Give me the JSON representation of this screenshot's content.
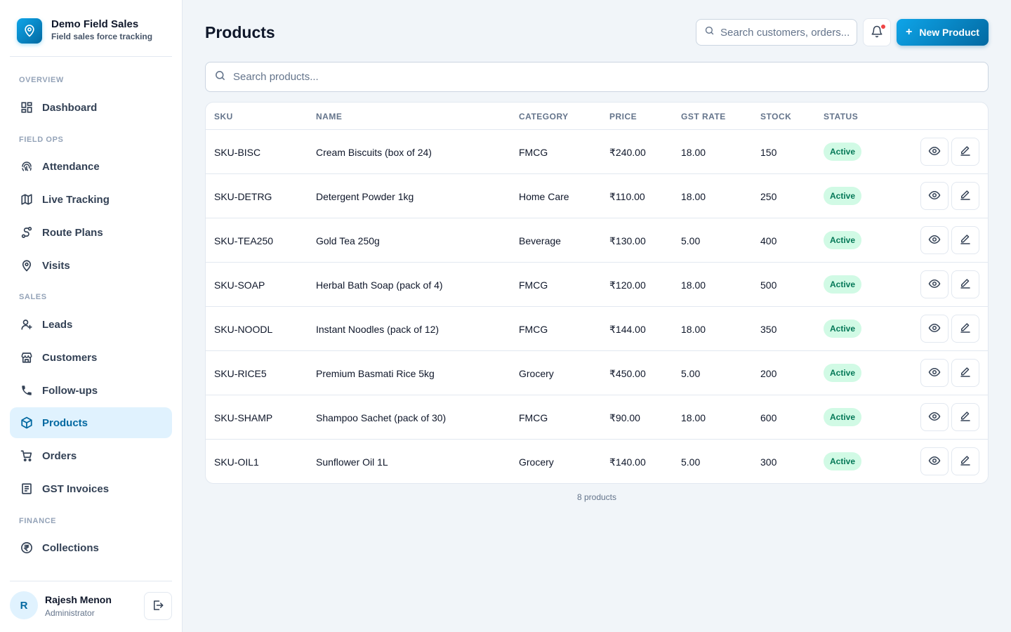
{
  "brand": {
    "title": "Demo Field Sales",
    "subtitle": "Field sales force tracking"
  },
  "nav": {
    "sections": [
      {
        "label": "OVERVIEW"
      },
      {
        "label": "FIELD OPS"
      },
      {
        "label": "SALES"
      },
      {
        "label": "FINANCE"
      }
    ],
    "items": [
      {
        "label": "Dashboard",
        "icon": "dashboard-icon"
      },
      {
        "label": "Attendance",
        "icon": "fingerprint-icon"
      },
      {
        "label": "Live Tracking",
        "icon": "map-icon"
      },
      {
        "label": "Route Plans",
        "icon": "route-icon"
      },
      {
        "label": "Visits",
        "icon": "map-pin-icon"
      },
      {
        "label": "Leads",
        "icon": "user-plus-icon"
      },
      {
        "label": "Customers",
        "icon": "store-icon"
      },
      {
        "label": "Follow-ups",
        "icon": "phone-icon"
      },
      {
        "label": "Products",
        "icon": "package-icon",
        "active": true
      },
      {
        "label": "Orders",
        "icon": "cart-icon"
      },
      {
        "label": "GST Invoices",
        "icon": "invoice-icon"
      },
      {
        "label": "Collections",
        "icon": "rupee-icon"
      }
    ]
  },
  "user": {
    "initial": "R",
    "name": "Rajesh Menon",
    "role": "Administrator"
  },
  "header": {
    "title": "Products",
    "search_placeholder": "Search customers, orders...",
    "new_button_label": "New Product"
  },
  "product_search": {
    "placeholder": "Search products..."
  },
  "table": {
    "columns": [
      "SKU",
      "NAME",
      "CATEGORY",
      "PRICE",
      "GST RATE",
      "STOCK",
      "STATUS"
    ],
    "rows": [
      {
        "sku": "SKU-BISC",
        "name": "Cream Biscuits (box of 24)",
        "category": "FMCG",
        "price": "₹240.00",
        "gst": "18.00",
        "stock": "150",
        "status": "Active"
      },
      {
        "sku": "SKU-DETRG",
        "name": "Detergent Powder 1kg",
        "category": "Home Care",
        "price": "₹110.00",
        "gst": "18.00",
        "stock": "250",
        "status": "Active"
      },
      {
        "sku": "SKU-TEA250",
        "name": "Gold Tea 250g",
        "category": "Beverage",
        "price": "₹130.00",
        "gst": "5.00",
        "stock": "400",
        "status": "Active"
      },
      {
        "sku": "SKU-SOAP",
        "name": "Herbal Bath Soap (pack of 4)",
        "category": "FMCG",
        "price": "₹120.00",
        "gst": "18.00",
        "stock": "500",
        "status": "Active"
      },
      {
        "sku": "SKU-NOODL",
        "name": "Instant Noodles (pack of 12)",
        "category": "FMCG",
        "price": "₹144.00",
        "gst": "18.00",
        "stock": "350",
        "status": "Active"
      },
      {
        "sku": "SKU-RICE5",
        "name": "Premium Basmati Rice 5kg",
        "category": "Grocery",
        "price": "₹450.00",
        "gst": "5.00",
        "stock": "200",
        "status": "Active"
      },
      {
        "sku": "SKU-SHAMP",
        "name": "Shampoo Sachet (pack of 30)",
        "category": "FMCG",
        "price": "₹90.00",
        "gst": "18.00",
        "stock": "600",
        "status": "Active"
      },
      {
        "sku": "SKU-OIL1",
        "name": "Sunflower Oil 1L",
        "category": "Grocery",
        "price": "₹140.00",
        "gst": "5.00",
        "stock": "300",
        "status": "Active"
      }
    ],
    "footer": "8 products"
  },
  "colors": {
    "accent": "#0284c7",
    "active_bg": "#e0f2fe",
    "status_bg": "#d1fae5",
    "status_text": "#047857"
  }
}
